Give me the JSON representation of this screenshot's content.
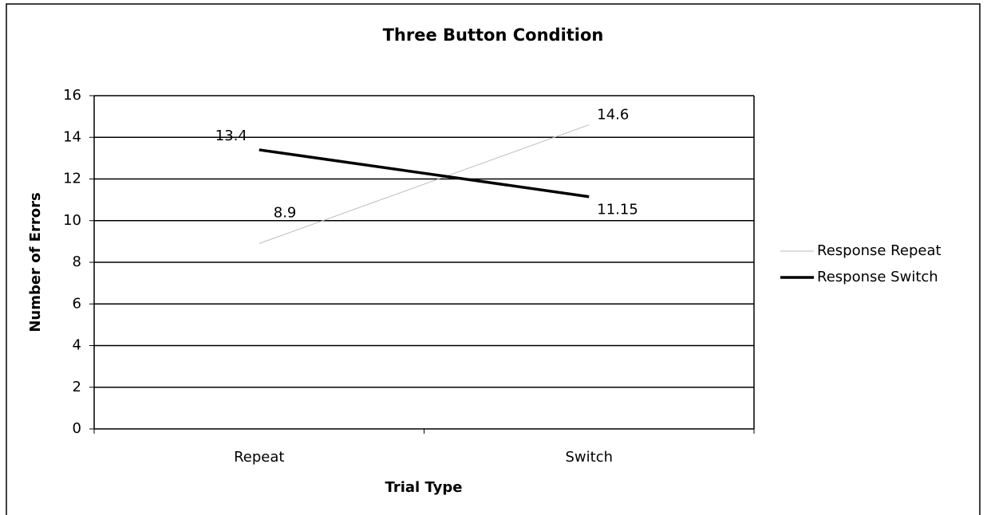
{
  "chart_data": {
    "type": "line",
    "title": "Three Button Condition",
    "x_label": "Trial Type",
    "y_label": "Number of Errors",
    "categories": [
      "Repeat",
      "Switch"
    ],
    "series": [
      {
        "name": "Response Repeat",
        "color": "#bbbbbb",
        "values": [
          8.9,
          14.6
        ]
      },
      {
        "name": "Response Switch",
        "color": "#000000",
        "values": [
          13.4,
          11.15
        ]
      }
    ],
    "ylim": [
      0,
      16
    ],
    "yticks": [
      0,
      2,
      4,
      6,
      8,
      10,
      12,
      14,
      16
    ],
    "grid": true,
    "legend": "right"
  }
}
